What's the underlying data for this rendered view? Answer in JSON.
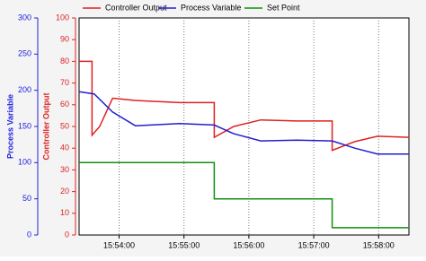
{
  "chart_data": {
    "type": "line",
    "xlabel_ticks_note": null,
    "ylabel": "Process Variable",
    "y2label": "Controller Output",
    "ylim": [
      0,
      300
    ],
    "yticks": [
      0,
      50,
      100,
      150,
      200,
      250,
      300
    ],
    "ycolor": "#2222dd",
    "y2lim": [
      0,
      100
    ],
    "y2ticks": [
      0,
      10,
      20,
      30,
      40,
      50,
      60,
      70,
      80,
      90,
      100
    ],
    "y2color": "#dd2222",
    "xlim": [
      57203,
      57508
    ],
    "xticks": [
      {
        "value": 57240,
        "label": "15:54:00"
      },
      {
        "value": 57300,
        "label": "15:55:00"
      },
      {
        "value": 57360,
        "label": "15:56:00"
      },
      {
        "value": 57420,
        "label": "15:57:00"
      },
      {
        "value": 57480,
        "label": "15:58:00"
      }
    ],
    "grid": true,
    "series": [
      {
        "name": "Controller Output",
        "color": "#e02020",
        "axis": "y2",
        "x": [
          57203,
          57215,
          57215,
          57222,
          57234,
          57255,
          57296,
          57328,
          57328,
          57346,
          57371,
          57404,
          57437,
          57437,
          57458,
          57479,
          57508
        ],
        "values": [
          80,
          80,
          46,
          50,
          63,
          62,
          61,
          61,
          45,
          50,
          53,
          52.5,
          52.5,
          39,
          43,
          45.5,
          45
        ]
      },
      {
        "name": "Process Variable",
        "color": "#2020d0",
        "x": [
          57203,
          57217,
          57234,
          57255,
          57296,
          57328,
          57346,
          57371,
          57404,
          57437,
          57458,
          57479,
          57508
        ],
        "values": [
          198,
          195,
          170,
          151,
          154,
          152,
          140,
          130,
          131,
          130,
          120,
          112,
          112
        ]
      },
      {
        "name": "Set Point",
        "color": "#109010",
        "x": [
          57203,
          57328,
          57328,
          57437,
          57437,
          57508
        ],
        "values": [
          100,
          100,
          50,
          50,
          10,
          10
        ]
      }
    ]
  }
}
